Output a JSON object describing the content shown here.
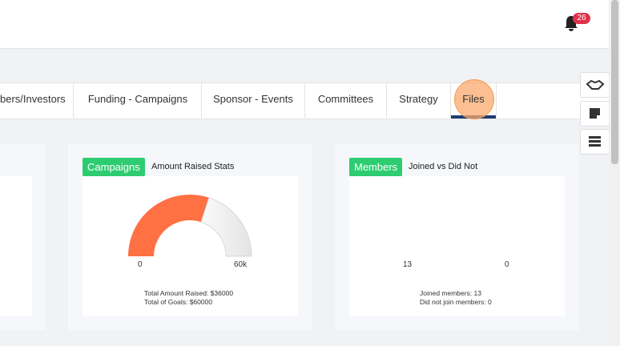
{
  "header": {
    "notification_count": "26"
  },
  "tabs": [
    "bers/Investors",
    "Funding - Campaigns",
    "Sponsor - Events",
    "Committees",
    "Strategy",
    "Files"
  ],
  "cards": [
    {
      "badge": "Campaigns",
      "title": "Amount Raised Stats",
      "gauge_min": "0",
      "gauge_max": "60k",
      "lines": [
        "Total Amount Raised: $36000",
        "Total of Goals: $60000"
      ]
    },
    {
      "badge": "Members",
      "title": "Joined vs Did Not",
      "gauge_min": "13",
      "gauge_max": "0",
      "lines": [
        "Joined members: 13",
        "Did not join members: 0"
      ]
    }
  ]
}
